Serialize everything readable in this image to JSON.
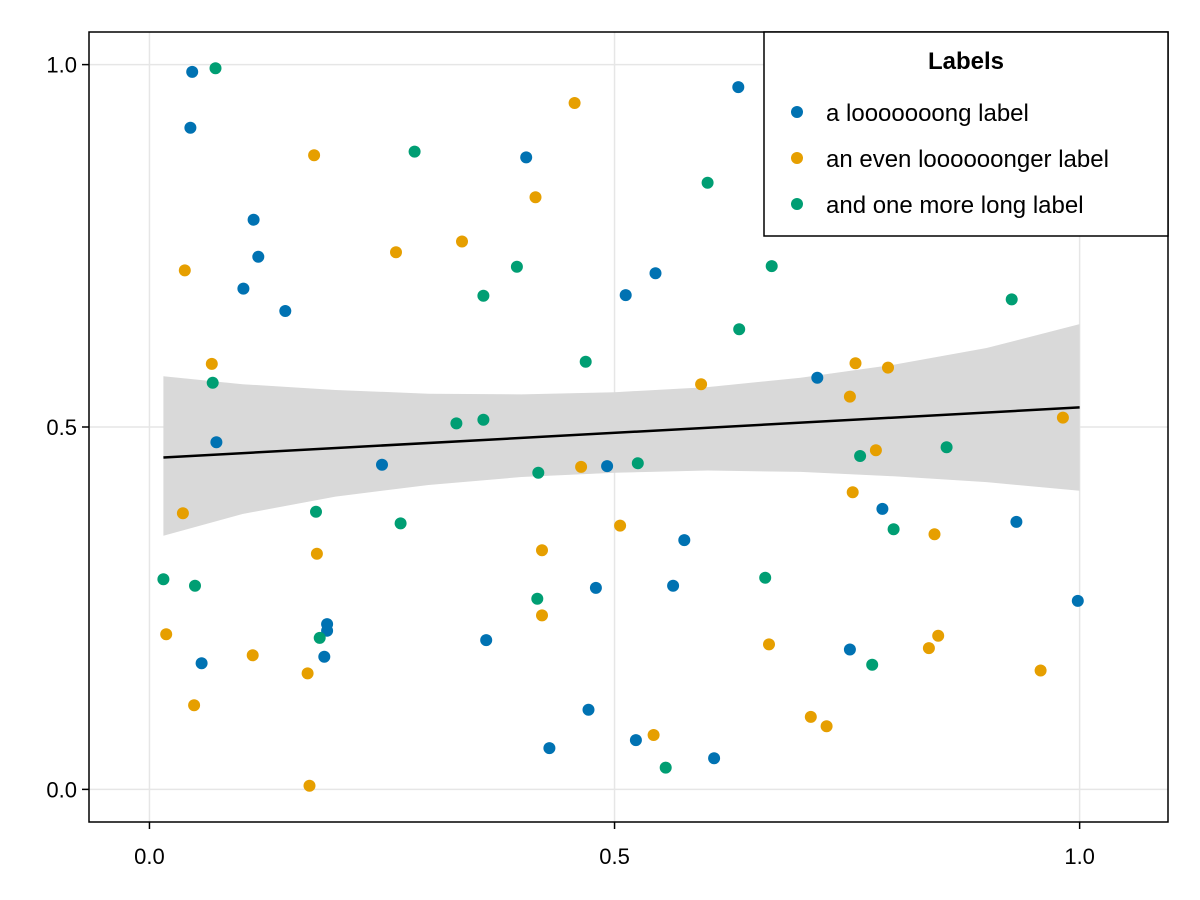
{
  "chart_data": {
    "type": "scatter",
    "title": "",
    "xlabel": "",
    "ylabel": "",
    "xlim": [
      -0.065,
      1.095
    ],
    "ylim": [
      -0.045,
      1.045
    ],
    "x_ticks": [
      0.0,
      0.5,
      1.0
    ],
    "x_tick_labels": [
      "0.0",
      "0.5",
      "1.0"
    ],
    "y_ticks": [
      0.0,
      0.5,
      1.0
    ],
    "y_tick_labels": [
      "0.0",
      "0.5",
      "1.0"
    ],
    "grid": true,
    "legend": {
      "title": "Labels",
      "position": "top-right"
    },
    "series": [
      {
        "name": "a looooooong label",
        "color": "#0072B2",
        "points": [
          [
            0.046,
            0.99
          ],
          [
            0.044,
            0.913
          ],
          [
            0.112,
            0.786
          ],
          [
            0.117,
            0.735
          ],
          [
            0.101,
            0.691
          ],
          [
            0.146,
            0.66
          ],
          [
            0.072,
            0.479
          ],
          [
            0.056,
            0.174
          ],
          [
            0.188,
            0.183
          ],
          [
            0.191,
            0.228
          ],
          [
            0.191,
            0.219
          ],
          [
            0.25,
            0.448
          ],
          [
            0.362,
            0.206
          ],
          [
            0.405,
            0.872
          ],
          [
            0.43,
            0.057
          ],
          [
            0.472,
            0.11
          ],
          [
            0.48,
            0.278
          ],
          [
            0.492,
            0.446
          ],
          [
            0.512,
            0.682
          ],
          [
            0.544,
            0.712
          ],
          [
            0.523,
            0.068
          ],
          [
            0.563,
            0.281
          ],
          [
            0.575,
            0.344
          ],
          [
            0.607,
            0.043
          ],
          [
            0.633,
            0.969
          ],
          [
            0.718,
            0.568
          ],
          [
            0.753,
            0.193
          ],
          [
            0.788,
            0.387
          ],
          [
            0.932,
            0.369
          ],
          [
            0.998,
            0.26
          ]
        ]
      },
      {
        "name": "an even loooooonger label",
        "color": "#E69F00",
        "points": [
          [
            0.038,
            0.716
          ],
          [
            0.036,
            0.381
          ],
          [
            0.067,
            0.587
          ],
          [
            0.018,
            0.214
          ],
          [
            0.048,
            0.116
          ],
          [
            0.111,
            0.185
          ],
          [
            0.177,
            0.875
          ],
          [
            0.18,
            0.325
          ],
          [
            0.17,
            0.16
          ],
          [
            0.172,
            0.005
          ],
          [
            0.265,
            0.741
          ],
          [
            0.336,
            0.756
          ],
          [
            0.415,
            0.817
          ],
          [
            0.457,
            0.947
          ],
          [
            0.422,
            0.33
          ],
          [
            0.422,
            0.24
          ],
          [
            0.464,
            0.445
          ],
          [
            0.506,
            0.364
          ],
          [
            0.542,
            0.075
          ],
          [
            0.593,
            0.559
          ],
          [
            0.666,
            0.2
          ],
          [
            0.711,
            0.1
          ],
          [
            0.728,
            0.087
          ],
          [
            0.753,
            0.542
          ],
          [
            0.756,
            0.41
          ],
          [
            0.759,
            0.588
          ],
          [
            0.781,
            0.468
          ],
          [
            0.794,
            0.582
          ],
          [
            0.844,
            0.352
          ],
          [
            0.848,
            0.212
          ],
          [
            0.838,
            0.195
          ],
          [
            0.958,
            0.164
          ],
          [
            0.982,
            0.513
          ]
        ]
      },
      {
        "name": "and one more long label",
        "color": "#009E73",
        "points": [
          [
            0.071,
            0.995
          ],
          [
            0.068,
            0.561
          ],
          [
            0.049,
            0.281
          ],
          [
            0.015,
            0.29
          ],
          [
            0.179,
            0.383
          ],
          [
            0.183,
            0.209
          ],
          [
            0.285,
            0.88
          ],
          [
            0.27,
            0.367
          ],
          [
            0.33,
            0.505
          ],
          [
            0.359,
            0.51
          ],
          [
            0.359,
            0.681
          ],
          [
            0.395,
            0.721
          ],
          [
            0.418,
            0.437
          ],
          [
            0.417,
            0.263
          ],
          [
            0.469,
            0.59
          ],
          [
            0.525,
            0.45
          ],
          [
            0.555,
            0.03
          ],
          [
            0.6,
            0.837
          ],
          [
            0.634,
            0.635
          ],
          [
            0.669,
            0.722
          ],
          [
            0.662,
            0.292
          ],
          [
            0.764,
            0.46
          ],
          [
            0.777,
            0.172
          ],
          [
            0.8,
            0.359
          ],
          [
            0.857,
            0.472
          ],
          [
            0.927,
            0.676
          ]
        ]
      }
    ],
    "fit_line": {
      "color": "#000000",
      "x": [
        0.015,
        1.0
      ],
      "y": [
        0.458,
        0.527
      ]
    },
    "confidence_band": {
      "color": "#D9D9D9",
      "x": [
        0.015,
        0.1,
        0.2,
        0.3,
        0.4,
        0.5,
        0.6,
        0.7,
        0.8,
        0.9,
        1.0
      ],
      "upper": [
        0.57,
        0.559,
        0.551,
        0.546,
        0.545,
        0.548,
        0.555,
        0.568,
        0.586,
        0.609,
        0.642
      ],
      "lower": [
        0.35,
        0.38,
        0.404,
        0.42,
        0.431,
        0.437,
        0.44,
        0.438,
        0.432,
        0.424,
        0.412
      ]
    }
  }
}
